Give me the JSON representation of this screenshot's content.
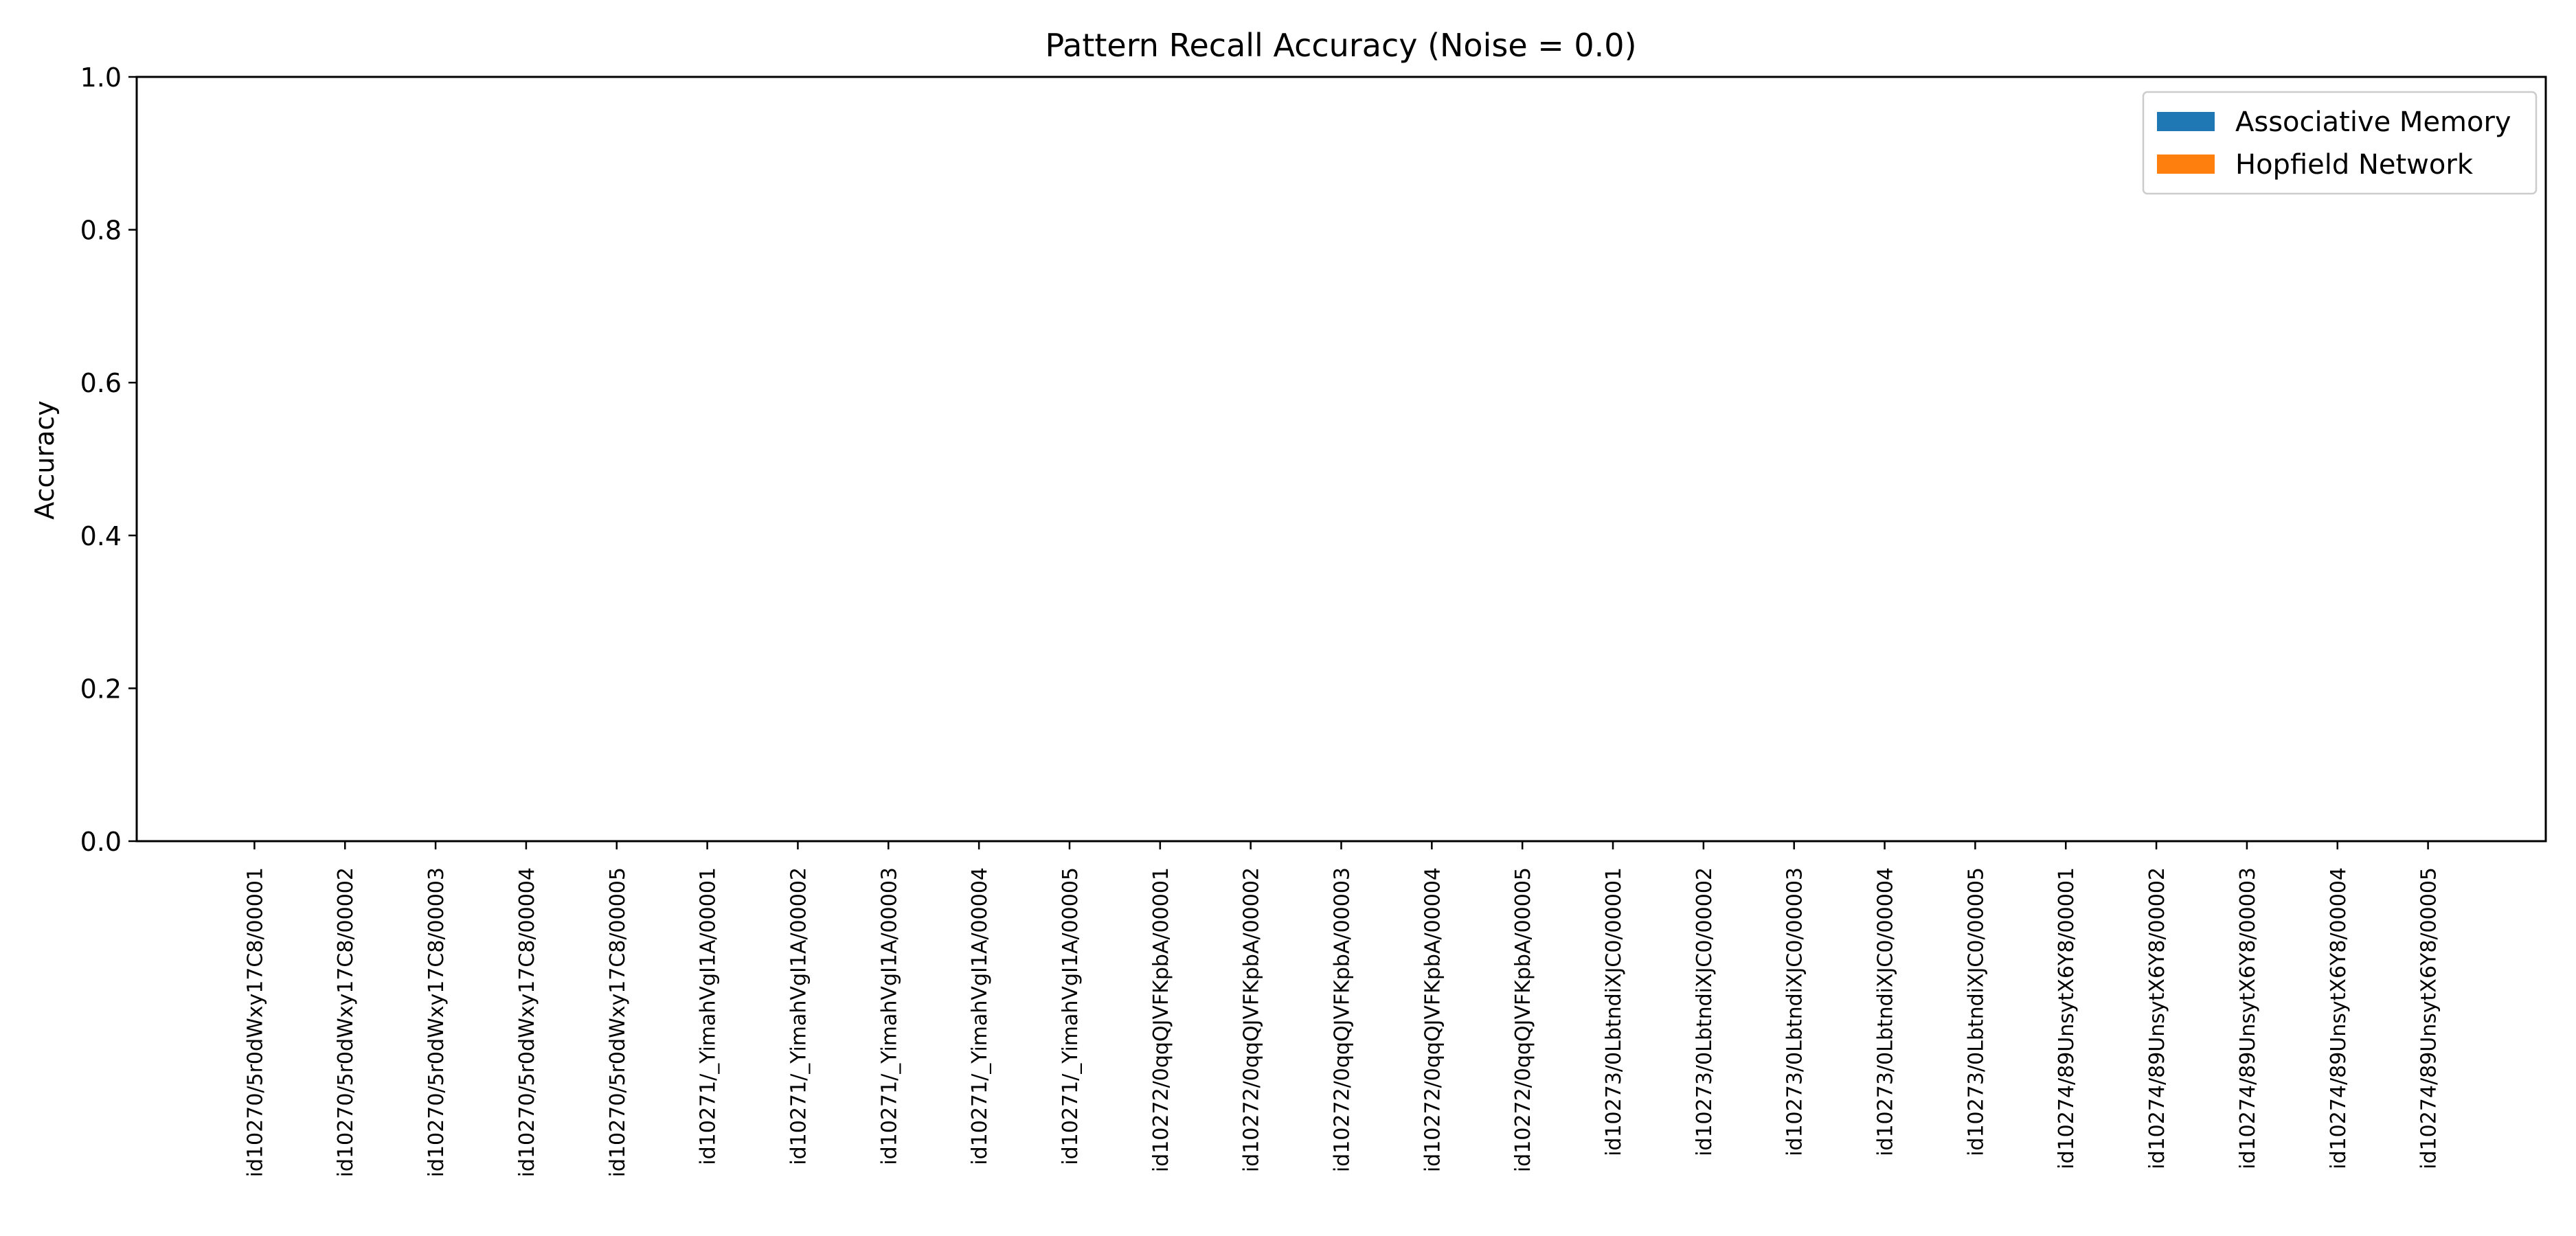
{
  "chart_data": {
    "type": "bar",
    "title": "Pattern Recall Accuracy (Noise = 0.0)",
    "xlabel": "",
    "ylabel": "Accuracy",
    "ylim": [
      0,
      1.0
    ],
    "yticks": [
      0.0,
      0.2,
      0.4,
      0.6,
      0.8,
      1.0
    ],
    "ytick_labels": [
      "0.0",
      "0.2",
      "0.4",
      "0.6",
      "0.8",
      "1.0"
    ],
    "grid": false,
    "legend_position": "upper right",
    "categories": [
      "id10270/5r0dWxy17C8/00001",
      "id10270/5r0dWxy17C8/00002",
      "id10270/5r0dWxy17C8/00003",
      "id10270/5r0dWxy17C8/00004",
      "id10270/5r0dWxy17C8/00005",
      "id10271/_YimahVgI1A/00001",
      "id10271/_YimahVgI1A/00002",
      "id10271/_YimahVgI1A/00003",
      "id10271/_YimahVgI1A/00004",
      "id10271/_YimahVgI1A/00005",
      "id10272/0qqQJVFKpbA/00001",
      "id10272/0qqQJVFKpbA/00002",
      "id10272/0qqQJVFKpbA/00003",
      "id10272/0qqQJVFKpbA/00004",
      "id10272/0qqQJVFKpbA/00005",
      "id10273/0LbtndiXJC0/00001",
      "id10273/0LbtndiXJC0/00002",
      "id10273/0LbtndiXJC0/00003",
      "id10273/0LbtndiXJC0/00004",
      "id10273/0LbtndiXJC0/00005",
      "id10274/89UnsytX6Y8/00001",
      "id10274/89UnsytX6Y8/00002",
      "id10274/89UnsytX6Y8/00003",
      "id10274/89UnsytX6Y8/00004",
      "id10274/89UnsytX6Y8/00005"
    ],
    "series": [
      {
        "name": "Associative Memory",
        "color": "#1f77b4",
        "values": [
          0,
          0,
          0,
          0,
          0,
          0,
          0,
          0,
          0,
          0,
          0,
          0,
          0,
          0,
          0,
          0,
          0,
          0,
          0,
          0,
          0,
          0,
          0,
          0,
          0
        ]
      },
      {
        "name": "Hopfield Network",
        "color": "#ff7f0e",
        "values": [
          0,
          0,
          0,
          0,
          0,
          0,
          0,
          0,
          0,
          0,
          0,
          0,
          0,
          0,
          0,
          0,
          0,
          0,
          0,
          0,
          0,
          0,
          0,
          0,
          0
        ]
      }
    ]
  }
}
